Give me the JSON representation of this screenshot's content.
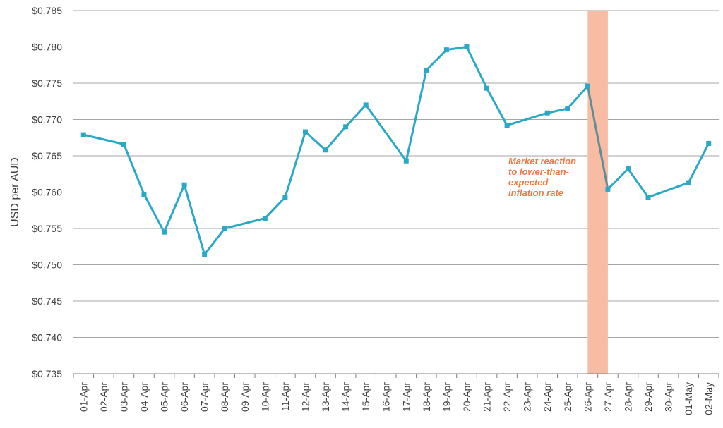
{
  "chart_data": {
    "type": "line",
    "title": "",
    "xlabel": "",
    "ylabel": "USD per AUD",
    "ylim": [
      0.735,
      0.785
    ],
    "yticks": [
      0.735,
      0.74,
      0.745,
      0.75,
      0.755,
      0.76,
      0.765,
      0.77,
      0.775,
      0.78,
      0.785
    ],
    "ytick_labels": [
      "$0.735",
      "$0.740",
      "$0.745",
      "$0.750",
      "$0.755",
      "$0.760",
      "$0.765",
      "$0.770",
      "$0.775",
      "$0.780",
      "$0.785"
    ],
    "grid": "horizontal",
    "categories": [
      "01-Apr",
      "02-Apr",
      "03-Apr",
      "04-Apr",
      "05-Apr",
      "06-Apr",
      "07-Apr",
      "08-Apr",
      "09-Apr",
      "10-Apr",
      "11-Apr",
      "12-Apr",
      "13-Apr",
      "14-Apr",
      "15-Apr",
      "16-Apr",
      "17-Apr",
      "18-Apr",
      "19-Apr",
      "20-Apr",
      "21-Apr",
      "22-Apr",
      "23-Apr",
      "24-Apr",
      "25-Apr",
      "26-Apr",
      "27-Apr",
      "28-Apr",
      "29-Apr",
      "30-Apr",
      "01-May",
      "02-May"
    ],
    "series": [
      {
        "name": "",
        "color": "#2aa8c8",
        "points": [
          {
            "x": "01-Apr",
            "y": 0.7679
          },
          {
            "x": "03-Apr",
            "y": 0.7666
          },
          {
            "x": "04-Apr",
            "y": 0.7597
          },
          {
            "x": "05-Apr",
            "y": 0.7545
          },
          {
            "x": "06-Apr",
            "y": 0.761
          },
          {
            "x": "07-Apr",
            "y": 0.7514
          },
          {
            "x": "08-Apr",
            "y": 0.755
          },
          {
            "x": "10-Apr",
            "y": 0.7564
          },
          {
            "x": "11-Apr",
            "y": 0.7593
          },
          {
            "x": "12-Apr",
            "y": 0.7683
          },
          {
            "x": "13-Apr",
            "y": 0.7658
          },
          {
            "x": "14-Apr",
            "y": 0.769
          },
          {
            "x": "15-Apr",
            "y": 0.772
          },
          {
            "x": "17-Apr",
            "y": 0.7643
          },
          {
            "x": "18-Apr",
            "y": 0.7768
          },
          {
            "x": "19-Apr",
            "y": 0.7796
          },
          {
            "x": "20-Apr",
            "y": 0.78
          },
          {
            "x": "21-Apr",
            "y": 0.7743
          },
          {
            "x": "22-Apr",
            "y": 0.7692
          },
          {
            "x": "24-Apr",
            "y": 0.7709
          },
          {
            "x": "25-Apr",
            "y": 0.7715
          },
          {
            "x": "26-Apr",
            "y": 0.7746
          },
          {
            "x": "27-Apr",
            "y": 0.7604
          },
          {
            "x": "28-Apr",
            "y": 0.7632
          },
          {
            "x": "29-Apr",
            "y": 0.7593
          },
          {
            "x": "01-May",
            "y": 0.7613
          },
          {
            "x": "02-May",
            "y": 0.7667
          }
        ]
      }
    ],
    "highlight": {
      "from": "26-Apr",
      "to": "27-Apr",
      "color": "#f8bba3",
      "segment_color": "#5d8f97"
    },
    "annotation": {
      "lines": [
        "Market reaction",
        "to lower-than-",
        "expected",
        "inflation rate"
      ],
      "color": "#f07844"
    }
  }
}
